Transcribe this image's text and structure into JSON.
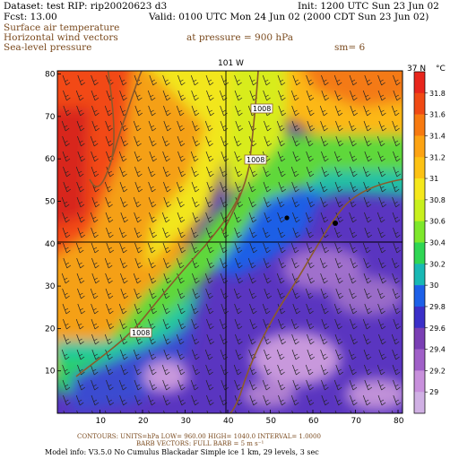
{
  "header": {
    "dataset_line": "Dataset: test  RIP: rip20020623 d3",
    "init_line": "Init: 1200 UTC Sun 23 Jun 02",
    "fcst_line": "Fcst:     13.00",
    "valid_line": "Valid: 0100 UTC Mon 24 Jun 02 (2000 CDT Sun 23 Jun 02)",
    "field1": "Surface air temperature",
    "field2": "Horizontal wind vectors",
    "field3": "Sea-level pressure",
    "pressure_label": "at pressure =  900 hPa",
    "sm_label": "sm= 6"
  },
  "map": {
    "top_label": "101 W",
    "lat_label": "37 N",
    "unit_label": "°C",
    "contour_labels": [
      "1008",
      "1008",
      "1008"
    ],
    "x_ticks": [
      "10",
      "20",
      "30",
      "40",
      "50",
      "60",
      "70",
      "80"
    ],
    "y_ticks": [
      "10",
      "20",
      "30",
      "40",
      "50",
      "60",
      "70",
      "80"
    ],
    "colorbar": {
      "labels": [
        "31.8",
        "31.6",
        "31.4",
        "31.2",
        "31",
        "30.8",
        "30.6",
        "30.4",
        "30.2",
        "30",
        "29.8",
        "29.6",
        "29.4",
        "29.2",
        "29"
      ],
      "colors": [
        "#e8261c",
        "#f04a14",
        "#f77a10",
        "#fca313",
        "#fcc214",
        "#f5e81c",
        "#c8f01e",
        "#7ee82c",
        "#2fd654",
        "#18b8b4",
        "#1d60e8",
        "#3b2fc8",
        "#7a3fb4",
        "#a060c8",
        "#c890dc",
        "#d0b0e4"
      ]
    }
  },
  "footer": {
    "line1": "CONTOURS:  UNITS=hPa  LOW=   960.00     HIGH=   1040.0     INTERVAL=   1.0000",
    "line2": "BARB VECTORS:  FULL BARB = 5 m s⁻¹",
    "line3": "Model info: V3.5.0 No Cumulus Blackadar  Simple ice    1 km,   29 levels,     3 sec"
  }
}
